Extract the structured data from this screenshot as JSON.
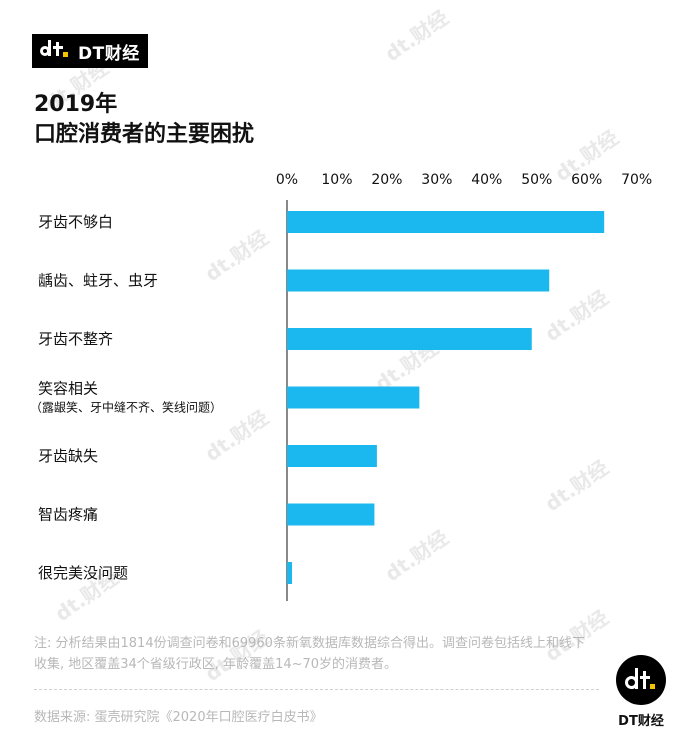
{
  "brand": {
    "name": "DT财经"
  },
  "title": {
    "line1": "2019年",
    "line2": "口腔消费者的主要困扰"
  },
  "chart_data": {
    "type": "bar",
    "orientation": "horizontal",
    "title": "2019年 口腔消费者的主要困扰",
    "categories": [
      {
        "label": "牙齿不够白",
        "sublabel": ""
      },
      {
        "label": "龋齿、蛀牙、虫牙",
        "sublabel": ""
      },
      {
        "label": "牙齿不整齐",
        "sublabel": ""
      },
      {
        "label": "笑容相关",
        "sublabel": "（露龈笑、牙中缝不齐、笑线问题）"
      },
      {
        "label": "牙齿缺失",
        "sublabel": ""
      },
      {
        "label": "智齿疼痛",
        "sublabel": ""
      },
      {
        "label": "很完美没问题",
        "sublabel": ""
      }
    ],
    "values": [
      63.5,
      52.5,
      49,
      26.5,
      18,
      17.5,
      1
    ],
    "xlim": [
      0,
      70
    ],
    "ticks": [
      "0%",
      "10%",
      "20%",
      "30%",
      "40%",
      "50%",
      "60%",
      "70%"
    ],
    "bar_color": "#1ab8ee",
    "grid": false,
    "axis_position": "top"
  },
  "note": "注: 分析结果由1814份调查问卷和69960条新氧数据库数据综合得出。调查问卷包括线上和线下收集, 地区覆盖34个省级行政区, 年龄覆盖14~70岁的消费者。",
  "source": "数据来源: 蛋壳研究院《2020年口腔医疗白皮书》",
  "logo": {
    "text": "DT财经"
  },
  "watermark": {
    "text": "财经"
  }
}
